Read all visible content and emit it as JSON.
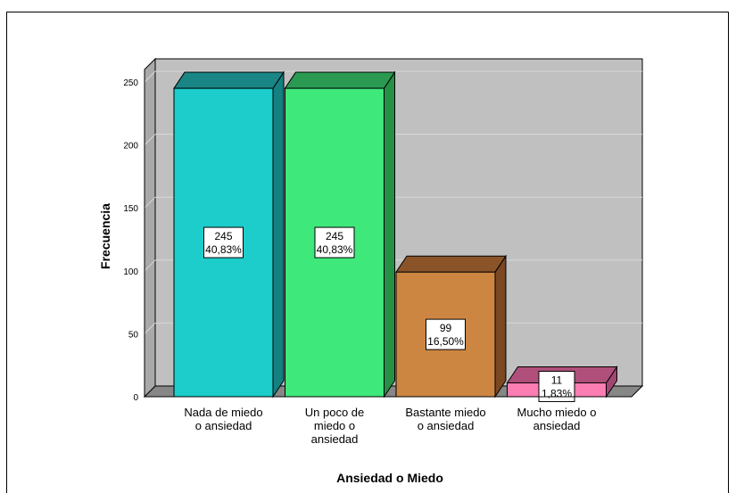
{
  "chart_data": {
    "type": "bar",
    "title": "",
    "xlabel": "Ansiedad o Miedo",
    "ylabel": "Frecuencia",
    "ylim": [
      0,
      250
    ],
    "yticks": [
      "0",
      "50",
      "100",
      "150",
      "200",
      "250"
    ],
    "categories": [
      [
        "Nada de miedo",
        "o ansiedad"
      ],
      [
        "Un poco de",
        "miedo o",
        "ansiedad"
      ],
      [
        "Bastante miedo",
        "o ansiedad"
      ],
      [
        "Mucho miedo o",
        "ansiedad"
      ]
    ],
    "values": [
      245,
      245,
      99,
      11
    ],
    "percent_labels": [
      "40,83%",
      "40,83%",
      "16,50%",
      "1,83%"
    ],
    "count_labels": [
      "245",
      "245",
      "99",
      "11"
    ],
    "grid": true,
    "legend": "none",
    "colors": {
      "bars": [
        "#1ccdcb",
        "#3fe87a",
        "#cd8642",
        "#fb7db2"
      ],
      "bar_tops": [
        "#1a8585",
        "#2a9a52",
        "#8a5428",
        "#b0507a"
      ],
      "bar_sides": [
        "#148080",
        "#259046",
        "#7a4822",
        "#a04670"
      ],
      "plot_back": "#c0c0c0",
      "plot_side": "#a9a9a9",
      "floor": "#878787",
      "gridline": "#d8d8d8"
    }
  }
}
